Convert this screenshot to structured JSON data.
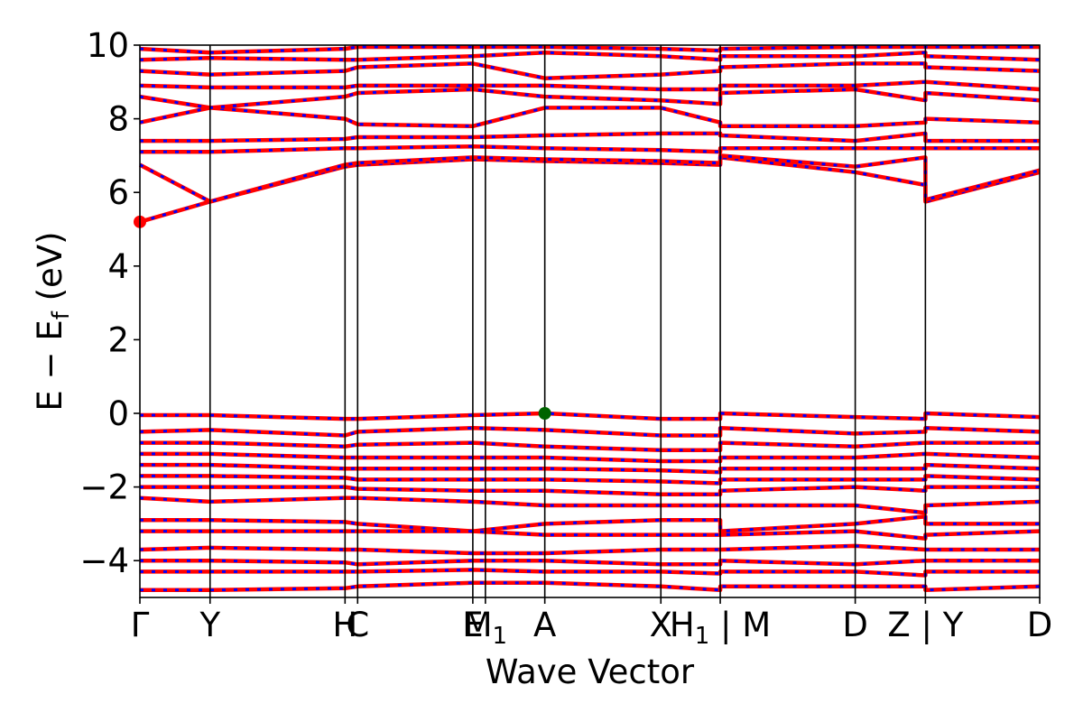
{
  "chart_data": {
    "type": "line",
    "title": "",
    "xlabel": "Wave Vector",
    "ylabel": "E − E_f (eV)",
    "ylabel_main": "E − E",
    "ylabel_sub": "f",
    "ylabel_tail": " (eV)",
    "ylim": [
      -5,
      10
    ],
    "yticks": [
      10,
      8,
      6,
      4,
      2,
      0,
      -2,
      -4
    ],
    "ytick_labels": [
      "10",
      "8",
      "6",
      "4",
      "2",
      "0",
      "−2",
      "−4"
    ],
    "kpath_total": 1.0,
    "kpoints": [
      {
        "pos": 0.0,
        "label": "Γ"
      },
      {
        "pos": 0.078,
        "label": "Y"
      },
      {
        "pos": 0.228,
        "label": "H"
      },
      {
        "pos": 0.242,
        "label": "C"
      },
      {
        "pos": 0.37,
        "label": "E"
      },
      {
        "pos": 0.384,
        "label": "M",
        "sub": "1"
      },
      {
        "pos": 0.45,
        "label": "A"
      },
      {
        "pos": 0.579,
        "label": "X"
      },
      {
        "pos": 0.645,
        "label": "H",
        "sub": "1",
        "suffix": " | M"
      },
      {
        "pos": 0.795,
        "label": "D"
      },
      {
        "pos": 0.873,
        "label": "Z",
        "suffix": " | Y"
      },
      {
        "pos": 1.0,
        "label": "D"
      }
    ],
    "series_colors": {
      "up": "#ff0000",
      "down": "#0000ff",
      "vbm": "#006400",
      "cbm": "#ff0000"
    },
    "vbm": {
      "k": 0.45,
      "E": 0.0
    },
    "cbm": {
      "k": 0.0,
      "E": 5.2
    },
    "conduction_bands": [
      [
        [
          0.0,
          5.2
        ],
        [
          0.078,
          5.75
        ],
        [
          0.228,
          6.7
        ],
        [
          0.242,
          6.75
        ],
        [
          0.37,
          6.9
        ],
        [
          0.45,
          6.85
        ],
        [
          0.579,
          6.8
        ],
        [
          0.645,
          6.75
        ],
        [
          0.645,
          6.95
        ],
        [
          0.795,
          6.55
        ],
        [
          0.873,
          6.2
        ],
        [
          0.873,
          5.75
        ],
        [
          1.0,
          6.55
        ]
      ],
      [
        [
          0.0,
          6.75
        ],
        [
          0.078,
          5.75
        ],
        [
          0.228,
          6.75
        ],
        [
          0.242,
          6.8
        ],
        [
          0.37,
          6.95
        ],
        [
          0.45,
          6.9
        ],
        [
          0.579,
          6.85
        ],
        [
          0.645,
          6.8
        ],
        [
          0.645,
          7.0
        ],
        [
          0.795,
          6.7
        ],
        [
          0.873,
          6.95
        ],
        [
          0.873,
          5.8
        ],
        [
          1.0,
          6.6
        ]
      ],
      [
        [
          0.0,
          7.1
        ],
        [
          0.078,
          7.1
        ],
        [
          0.228,
          7.2
        ],
        [
          0.242,
          7.2
        ],
        [
          0.37,
          7.25
        ],
        [
          0.45,
          7.2
        ],
        [
          0.579,
          7.15
        ],
        [
          0.645,
          7.1
        ],
        [
          0.645,
          7.2
        ],
        [
          0.795,
          7.2
        ],
        [
          0.873,
          7.2
        ],
        [
          0.873,
          7.2
        ],
        [
          1.0,
          7.2
        ]
      ],
      [
        [
          0.0,
          7.4
        ],
        [
          0.078,
          7.4
        ],
        [
          0.228,
          7.45
        ],
        [
          0.242,
          7.5
        ],
        [
          0.37,
          7.5
        ],
        [
          0.45,
          7.55
        ],
        [
          0.579,
          7.6
        ],
        [
          0.645,
          7.6
        ],
        [
          0.645,
          7.55
        ],
        [
          0.795,
          7.4
        ],
        [
          0.873,
          7.6
        ],
        [
          0.873,
          7.4
        ],
        [
          1.0,
          7.4
        ]
      ],
      [
        [
          0.0,
          7.9
        ],
        [
          0.078,
          8.3
        ],
        [
          0.228,
          8.0
        ],
        [
          0.242,
          7.85
        ],
        [
          0.37,
          7.8
        ],
        [
          0.45,
          8.3
        ],
        [
          0.579,
          8.3
        ],
        [
          0.645,
          7.9
        ],
        [
          0.645,
          7.8
        ],
        [
          0.795,
          7.8
        ],
        [
          0.873,
          7.9
        ],
        [
          0.873,
          8.0
        ],
        [
          1.0,
          7.9
        ]
      ],
      [
        [
          0.0,
          8.6
        ],
        [
          0.078,
          8.3
        ],
        [
          0.228,
          8.6
        ],
        [
          0.242,
          8.7
        ],
        [
          0.37,
          8.8
        ],
        [
          0.45,
          8.6
        ],
        [
          0.579,
          8.5
        ],
        [
          0.645,
          8.4
        ],
        [
          0.645,
          8.7
        ],
        [
          0.795,
          8.8
        ],
        [
          0.873,
          8.5
        ],
        [
          0.873,
          8.7
        ],
        [
          1.0,
          8.5
        ]
      ],
      [
        [
          0.0,
          8.9
        ],
        [
          0.078,
          8.85
        ],
        [
          0.228,
          8.85
        ],
        [
          0.242,
          8.9
        ],
        [
          0.37,
          8.9
        ],
        [
          0.45,
          8.9
        ],
        [
          0.579,
          8.8
        ],
        [
          0.645,
          8.8
        ],
        [
          0.645,
          8.9
        ],
        [
          0.795,
          8.9
        ],
        [
          0.873,
          9.0
        ],
        [
          0.873,
          9.0
        ],
        [
          1.0,
          8.8
        ]
      ],
      [
        [
          0.0,
          9.3
        ],
        [
          0.078,
          9.2
        ],
        [
          0.228,
          9.3
        ],
        [
          0.242,
          9.4
        ],
        [
          0.37,
          9.5
        ],
        [
          0.45,
          9.1
        ],
        [
          0.579,
          9.2
        ],
        [
          0.645,
          9.3
        ],
        [
          0.645,
          9.4
        ],
        [
          0.795,
          9.5
        ],
        [
          0.873,
          9.5
        ],
        [
          0.873,
          9.4
        ],
        [
          1.0,
          9.3
        ]
      ],
      [
        [
          0.0,
          9.6
        ],
        [
          0.078,
          9.65
        ],
        [
          0.228,
          9.6
        ],
        [
          0.242,
          9.6
        ],
        [
          0.37,
          9.7
        ],
        [
          0.45,
          9.8
        ],
        [
          0.579,
          9.7
        ],
        [
          0.645,
          9.6
        ],
        [
          0.645,
          9.7
        ],
        [
          0.795,
          9.7
        ],
        [
          0.873,
          9.8
        ],
        [
          0.873,
          9.7
        ],
        [
          1.0,
          9.6
        ]
      ],
      [
        [
          0.0,
          9.9
        ],
        [
          0.078,
          9.8
        ],
        [
          0.228,
          9.9
        ],
        [
          0.242,
          9.95
        ],
        [
          0.37,
          9.95
        ],
        [
          0.45,
          9.95
        ],
        [
          0.579,
          9.9
        ],
        [
          0.645,
          9.85
        ],
        [
          0.645,
          9.9
        ],
        [
          0.795,
          9.95
        ],
        [
          0.873,
          9.95
        ],
        [
          0.873,
          9.95
        ],
        [
          1.0,
          9.95
        ]
      ]
    ],
    "valence_bands": [
      [
        [
          0.0,
          -0.05
        ],
        [
          0.078,
          -0.05
        ],
        [
          0.228,
          -0.15
        ],
        [
          0.242,
          -0.15
        ],
        [
          0.37,
          -0.05
        ],
        [
          0.45,
          0.0
        ],
        [
          0.579,
          -0.15
        ],
        [
          0.645,
          -0.15
        ],
        [
          0.645,
          0.0
        ],
        [
          0.795,
          -0.1
        ],
        [
          0.873,
          -0.15
        ],
        [
          0.873,
          0.0
        ],
        [
          1.0,
          -0.1
        ]
      ],
      [
        [
          0.0,
          -0.5
        ],
        [
          0.078,
          -0.45
        ],
        [
          0.228,
          -0.6
        ],
        [
          0.242,
          -0.5
        ],
        [
          0.37,
          -0.4
        ],
        [
          0.45,
          -0.45
        ],
        [
          0.579,
          -0.6
        ],
        [
          0.645,
          -0.6
        ],
        [
          0.645,
          -0.4
        ],
        [
          0.795,
          -0.55
        ],
        [
          0.873,
          -0.5
        ],
        [
          0.873,
          -0.4
        ],
        [
          1.0,
          -0.5
        ]
      ],
      [
        [
          0.0,
          -0.8
        ],
        [
          0.078,
          -0.8
        ],
        [
          0.228,
          -0.9
        ],
        [
          0.242,
          -0.85
        ],
        [
          0.37,
          -0.8
        ],
        [
          0.45,
          -0.9
        ],
        [
          0.579,
          -1.0
        ],
        [
          0.645,
          -1.0
        ],
        [
          0.645,
          -0.8
        ],
        [
          0.795,
          -0.9
        ],
        [
          0.873,
          -0.8
        ],
        [
          0.873,
          -0.8
        ],
        [
          1.0,
          -0.8
        ]
      ],
      [
        [
          0.0,
          -1.1
        ],
        [
          0.078,
          -1.1
        ],
        [
          0.228,
          -1.2
        ],
        [
          0.242,
          -1.2
        ],
        [
          0.37,
          -1.2
        ],
        [
          0.45,
          -1.2
        ],
        [
          0.579,
          -1.3
        ],
        [
          0.645,
          -1.3
        ],
        [
          0.645,
          -1.2
        ],
        [
          0.795,
          -1.2
        ],
        [
          0.873,
          -1.1
        ],
        [
          0.873,
          -1.1
        ],
        [
          1.0,
          -1.2
        ]
      ],
      [
        [
          0.0,
          -1.4
        ],
        [
          0.078,
          -1.4
        ],
        [
          0.228,
          -1.5
        ],
        [
          0.242,
          -1.5
        ],
        [
          0.37,
          -1.5
        ],
        [
          0.45,
          -1.5
        ],
        [
          0.579,
          -1.55
        ],
        [
          0.645,
          -1.6
        ],
        [
          0.645,
          -1.5
        ],
        [
          0.795,
          -1.5
        ],
        [
          0.873,
          -1.5
        ],
        [
          0.873,
          -1.4
        ],
        [
          1.0,
          -1.5
        ]
      ],
      [
        [
          0.0,
          -1.7
        ],
        [
          0.078,
          -1.7
        ],
        [
          0.228,
          -1.75
        ],
        [
          0.242,
          -1.8
        ],
        [
          0.37,
          -1.8
        ],
        [
          0.45,
          -1.8
        ],
        [
          0.579,
          -1.85
        ],
        [
          0.645,
          -1.9
        ],
        [
          0.645,
          -1.8
        ],
        [
          0.795,
          -1.8
        ],
        [
          0.873,
          -1.8
        ],
        [
          0.873,
          -1.7
        ],
        [
          1.0,
          -1.8
        ]
      ],
      [
        [
          0.0,
          -2.0
        ],
        [
          0.078,
          -2.0
        ],
        [
          0.228,
          -2.0
        ],
        [
          0.242,
          -2.05
        ],
        [
          0.37,
          -2.1
        ],
        [
          0.45,
          -2.1
        ],
        [
          0.579,
          -2.2
        ],
        [
          0.645,
          -2.2
        ],
        [
          0.645,
          -2.1
        ],
        [
          0.795,
          -2.0
        ],
        [
          0.873,
          -2.1
        ],
        [
          0.873,
          -2.0
        ],
        [
          1.0,
          -2.0
        ]
      ],
      [
        [
          0.0,
          -2.3
        ],
        [
          0.078,
          -2.4
        ],
        [
          0.228,
          -2.3
        ],
        [
          0.242,
          -2.3
        ],
        [
          0.37,
          -2.4
        ],
        [
          0.45,
          -2.5
        ],
        [
          0.579,
          -2.5
        ],
        [
          0.645,
          -2.5
        ],
        [
          0.645,
          -2.5
        ],
        [
          0.795,
          -2.5
        ],
        [
          0.873,
          -2.7
        ],
        [
          0.873,
          -2.5
        ],
        [
          1.0,
          -2.4
        ]
      ],
      [
        [
          0.0,
          -2.9
        ],
        [
          0.078,
          -2.9
        ],
        [
          0.228,
          -2.95
        ],
        [
          0.242,
          -3.0
        ],
        [
          0.37,
          -3.2
        ],
        [
          0.45,
          -3.0
        ],
        [
          0.579,
          -2.9
        ],
        [
          0.645,
          -2.9
        ],
        [
          0.645,
          -3.2
        ],
        [
          0.795,
          -3.0
        ],
        [
          0.873,
          -2.8
        ],
        [
          0.873,
          -3.0
        ],
        [
          1.0,
          -3.0
        ]
      ],
      [
        [
          0.0,
          -3.2
        ],
        [
          0.078,
          -3.2
        ],
        [
          0.228,
          -3.2
        ],
        [
          0.242,
          -3.2
        ],
        [
          0.37,
          -3.2
        ],
        [
          0.45,
          -3.3
        ],
        [
          0.579,
          -3.3
        ],
        [
          0.645,
          -3.3
        ],
        [
          0.645,
          -3.3
        ],
        [
          0.795,
          -3.2
        ],
        [
          0.873,
          -3.4
        ],
        [
          0.873,
          -3.3
        ],
        [
          1.0,
          -3.2
        ]
      ],
      [
        [
          0.0,
          -3.7
        ],
        [
          0.078,
          -3.65
        ],
        [
          0.228,
          -3.7
        ],
        [
          0.242,
          -3.7
        ],
        [
          0.37,
          -3.8
        ],
        [
          0.45,
          -3.8
        ],
        [
          0.579,
          -3.7
        ],
        [
          0.645,
          -3.7
        ],
        [
          0.645,
          -3.7
        ],
        [
          0.795,
          -3.6
        ],
        [
          0.873,
          -3.7
        ],
        [
          0.873,
          -3.7
        ],
        [
          1.0,
          -3.7
        ]
      ],
      [
        [
          0.0,
          -4.0
        ],
        [
          0.078,
          -4.0
        ],
        [
          0.228,
          -4.05
        ],
        [
          0.242,
          -4.1
        ],
        [
          0.37,
          -4.0
        ],
        [
          0.45,
          -4.0
        ],
        [
          0.579,
          -4.1
        ],
        [
          0.645,
          -4.1
        ],
        [
          0.645,
          -4.0
        ],
        [
          0.795,
          -4.1
        ],
        [
          0.873,
          -4.0
        ],
        [
          0.873,
          -4.0
        ],
        [
          1.0,
          -4.0
        ]
      ],
      [
        [
          0.0,
          -4.3
        ],
        [
          0.078,
          -4.3
        ],
        [
          0.228,
          -4.3
        ],
        [
          0.242,
          -4.3
        ],
        [
          0.37,
          -4.25
        ],
        [
          0.45,
          -4.3
        ],
        [
          0.579,
          -4.3
        ],
        [
          0.645,
          -4.35
        ],
        [
          0.645,
          -4.3
        ],
        [
          0.795,
          -4.3
        ],
        [
          0.873,
          -4.4
        ],
        [
          0.873,
          -4.3
        ],
        [
          1.0,
          -4.3
        ]
      ],
      [
        [
          0.0,
          -4.8
        ],
        [
          0.078,
          -4.8
        ],
        [
          0.228,
          -4.75
        ],
        [
          0.242,
          -4.7
        ],
        [
          0.37,
          -4.6
        ],
        [
          0.45,
          -4.6
        ],
        [
          0.579,
          -4.7
        ],
        [
          0.645,
          -4.8
        ],
        [
          0.645,
          -4.7
        ],
        [
          0.795,
          -4.7
        ],
        [
          0.873,
          -4.7
        ],
        [
          0.873,
          -4.8
        ],
        [
          1.0,
          -4.7
        ]
      ]
    ]
  }
}
